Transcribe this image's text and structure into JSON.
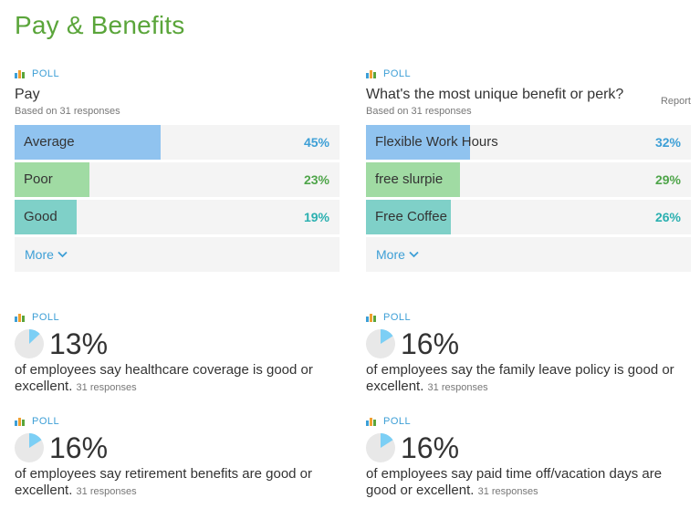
{
  "page": {
    "title": "Pay & Benefits"
  },
  "poll_tag": "POLL",
  "polls": [
    {
      "question": "Pay",
      "based_on": "Based on 31 responses",
      "options": [
        {
          "label": "Average",
          "percent": "45%",
          "value": 45,
          "color": "#90c3ef",
          "pct_color": "#3d9fd6"
        },
        {
          "label": "Poor",
          "percent": "23%",
          "value": 23,
          "color": "#a0dba3",
          "pct_color": "#4fa54a"
        },
        {
          "label": "Good",
          "percent": "19%",
          "value": 19,
          "color": "#7fd0c8",
          "pct_color": "#2bb0b0"
        }
      ],
      "more_label": "More"
    },
    {
      "question": "What's the most unique benefit or perk?",
      "based_on": "Based on 31 responses",
      "report_label": "Report",
      "options": [
        {
          "label": "Flexible Work Hours",
          "percent": "32%",
          "value": 32,
          "color": "#90c3ef",
          "pct_color": "#3d9fd6"
        },
        {
          "label": "free slurpie",
          "percent": "29%",
          "value": 29,
          "color": "#a0dba3",
          "pct_color": "#4fa54a"
        },
        {
          "label": "Free Coffee",
          "percent": "26%",
          "value": 26,
          "color": "#7fd0c8",
          "pct_color": "#2bb0b0"
        }
      ],
      "more_label": "More"
    }
  ],
  "stats": [
    {
      "percent": "13%",
      "value": 13,
      "description": "of employees say healthcare coverage is good or excellent.",
      "responses": "31 responses"
    },
    {
      "percent": "16%",
      "value": 16,
      "description": "of employees say the family leave policy is good or excellent.",
      "responses": "31 responses"
    },
    {
      "percent": "16%",
      "value": 16,
      "description": "of employees say retirement benefits are good or excellent.",
      "responses": "31 responses"
    },
    {
      "percent": "16%",
      "value": 16,
      "description": "of employees say paid time off/vacation days are good or excellent.",
      "responses": "31 responses"
    }
  ],
  "colors": {
    "accent_blue": "#3d9fd6",
    "title_green": "#5aa53a",
    "pie_fill": "#7ccff5",
    "pie_bg": "#e8e8e8"
  }
}
